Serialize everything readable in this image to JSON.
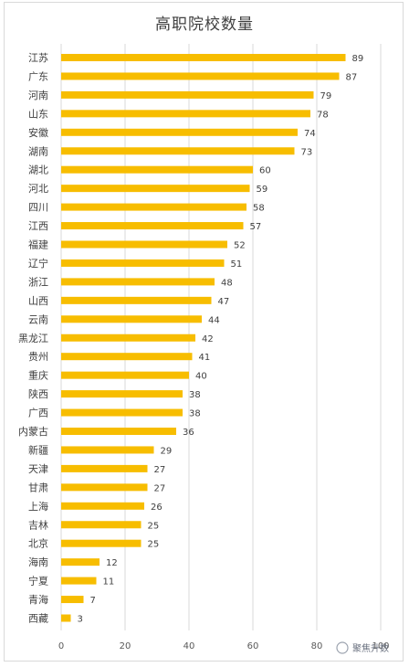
{
  "chart_data": {
    "type": "bar",
    "orientation": "horizontal",
    "title": "高职院校数量",
    "xlabel": "",
    "ylabel": "",
    "categories": [
      "江苏",
      "广东",
      "河南",
      "山东",
      "安徽",
      "湖南",
      "湖北",
      "河北",
      "四川",
      "江西",
      "福建",
      "辽宁",
      "浙江",
      "山西",
      "云南",
      "黑龙江",
      "贵州",
      "重庆",
      "陕西",
      "广西",
      "内蒙古",
      "新疆",
      "天津",
      "甘肃",
      "上海",
      "吉林",
      "北京",
      "海南",
      "宁夏",
      "青海",
      "西藏"
    ],
    "values": [
      89,
      87,
      79,
      78,
      74,
      73,
      60,
      59,
      58,
      57,
      52,
      51,
      48,
      47,
      44,
      42,
      41,
      40,
      38,
      38,
      36,
      29,
      27,
      27,
      26,
      25,
      25,
      12,
      11,
      7,
      3
    ],
    "xlim": [
      0,
      100
    ],
    "xticks": [
      0,
      20,
      40,
      60,
      80,
      100
    ],
    "grid": "vertical",
    "legend": "none",
    "bar_color": "#f7bd00",
    "grid_color": "#d9d9d9"
  },
  "watermark": "聚焦升数"
}
